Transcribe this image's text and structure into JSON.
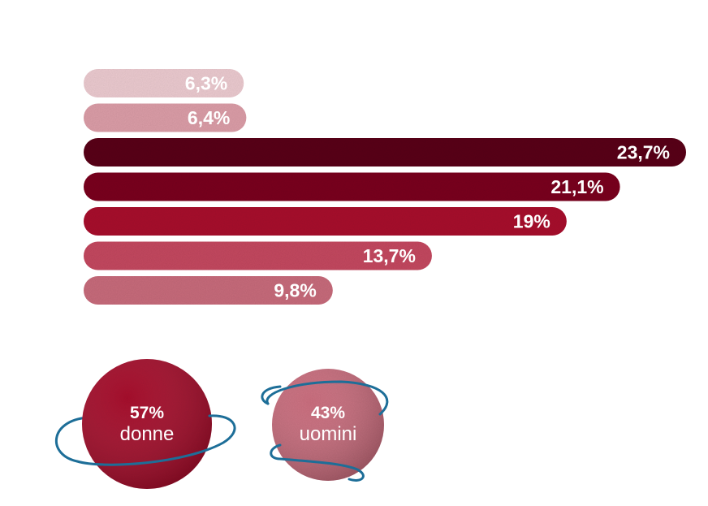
{
  "chart_data": {
    "type": "bar",
    "orientation": "horizontal",
    "values": [
      6.3,
      6.4,
      23.7,
      21.1,
      19,
      13.7,
      9.8
    ],
    "labels": [
      "6,3%",
      "6,4%",
      "23,7%",
      "21,1%",
      "19%",
      "13,7%",
      "9,8%"
    ],
    "colors": [
      "#eccbd0",
      "#dc9ea8",
      "#5a0b1e",
      "#7a0d24",
      "#a8162f",
      "#c44a60",
      "#c86c7c"
    ],
    "title": "",
    "xlabel": "",
    "ylabel": ""
  },
  "gender": [
    {
      "percent": "57%",
      "label": "donne",
      "value": 57,
      "color": "#a8162f"
    },
    {
      "percent": "43%",
      "label": "uomini",
      "value": 43,
      "color": "#cc6f80"
    }
  ],
  "colors": {
    "orbit": "#1d6e98",
    "text": "#ffffff"
  }
}
